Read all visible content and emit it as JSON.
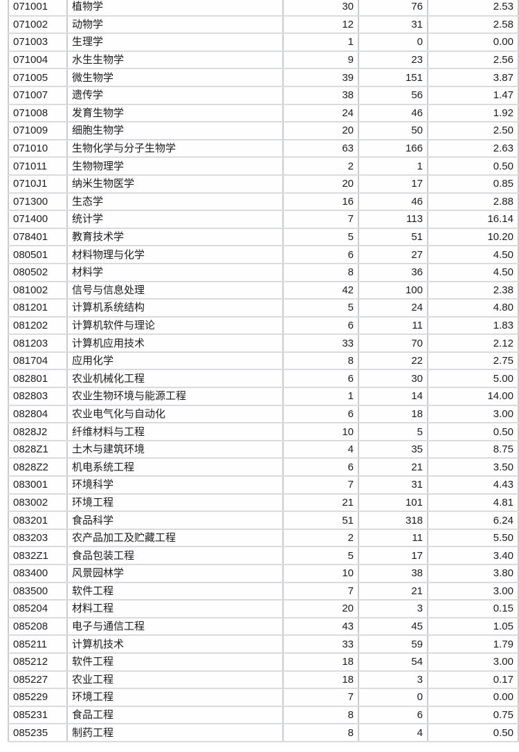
{
  "colors": {
    "background": "#ffffff",
    "border_vertical": "#c9cbd3",
    "border_horizontal": "#d9dbde",
    "text": "#1b1b1d"
  },
  "table": {
    "rows": [
      [
        "071001",
        "植物学",
        "30",
        "76",
        "2.53"
      ],
      [
        "071002",
        "动物学",
        "12",
        "31",
        "2.58"
      ],
      [
        "071003",
        "生理学",
        "1",
        "0",
        "0.00"
      ],
      [
        "071004",
        "水生生物学",
        "9",
        "23",
        "2.56"
      ],
      [
        "071005",
        "微生物学",
        "39",
        "151",
        "3.87"
      ],
      [
        "071007",
        "遗传学",
        "38",
        "56",
        "1.47"
      ],
      [
        "071008",
        "发育生物学",
        "24",
        "46",
        "1.92"
      ],
      [
        "071009",
        "细胞生物学",
        "20",
        "50",
        "2.50"
      ],
      [
        "071010",
        "生物化学与分子生物学",
        "63",
        "166",
        "2.63"
      ],
      [
        "071011",
        "生物物理学",
        "2",
        "1",
        "0.50"
      ],
      [
        "0710J1",
        "纳米生物医学",
        "20",
        "17",
        "0.85"
      ],
      [
        "071300",
        "生态学",
        "16",
        "46",
        "2.88"
      ],
      [
        "071400",
        "统计学",
        "7",
        "113",
        "16.14"
      ],
      [
        "078401",
        "教育技术学",
        "5",
        "51",
        "10.20"
      ],
      [
        "080501",
        "材料物理与化学",
        "6",
        "27",
        "4.50"
      ],
      [
        "080502",
        "材料学",
        "8",
        "36",
        "4.50"
      ],
      [
        "081002",
        "信号与信息处理",
        "42",
        "100",
        "2.38"
      ],
      [
        "081201",
        "计算机系统结构",
        "5",
        "24",
        "4.80"
      ],
      [
        "081202",
        "计算机软件与理论",
        "6",
        "11",
        "1.83"
      ],
      [
        "081203",
        "计算机应用技术",
        "33",
        "70",
        "2.12"
      ],
      [
        "081704",
        "应用化学",
        "8",
        "22",
        "2.75"
      ],
      [
        "082801",
        "农业机械化工程",
        "6",
        "30",
        "5.00"
      ],
      [
        "082803",
        "农业生物环境与能源工程",
        "1",
        "14",
        "14.00"
      ],
      [
        "082804",
        "农业电气化与自动化",
        "6",
        "18",
        "3.00"
      ],
      [
        "0828J2",
        "纤维材料与工程",
        "10",
        "5",
        "0.50"
      ],
      [
        "0828Z1",
        "土木与建筑环境",
        "4",
        "35",
        "8.75"
      ],
      [
        "0828Z2",
        "机电系统工程",
        "6",
        "21",
        "3.50"
      ],
      [
        "083001",
        "环境科学",
        "7",
        "31",
        "4.43"
      ],
      [
        "083002",
        "环境工程",
        "21",
        "101",
        "4.81"
      ],
      [
        "083201",
        "食品科学",
        "51",
        "318",
        "6.24"
      ],
      [
        "083203",
        "农产品加工及贮藏工程",
        "2",
        "11",
        "5.50"
      ],
      [
        "0832Z1",
        "食品包装工程",
        "5",
        "17",
        "3.40"
      ],
      [
        "083400",
        "风景园林学",
        "10",
        "38",
        "3.80"
      ],
      [
        "083500",
        "软件工程",
        "7",
        "21",
        "3.00"
      ],
      [
        "085204",
        "材料工程",
        "20",
        "3",
        "0.15"
      ],
      [
        "085208",
        "电子与通信工程",
        "43",
        "45",
        "1.05"
      ],
      [
        "085211",
        "计算机技术",
        "33",
        "59",
        "1.79"
      ],
      [
        "085212",
        "软件工程",
        "18",
        "54",
        "3.00"
      ],
      [
        "085227",
        "农业工程",
        "18",
        "3",
        "0.17"
      ],
      [
        "085229",
        "环境工程",
        "7",
        "0",
        "0.00"
      ],
      [
        "085231",
        "食品工程",
        "8",
        "6",
        "0.75"
      ],
      [
        "085235",
        "制药工程",
        "8",
        "4",
        "0.50"
      ]
    ]
  }
}
